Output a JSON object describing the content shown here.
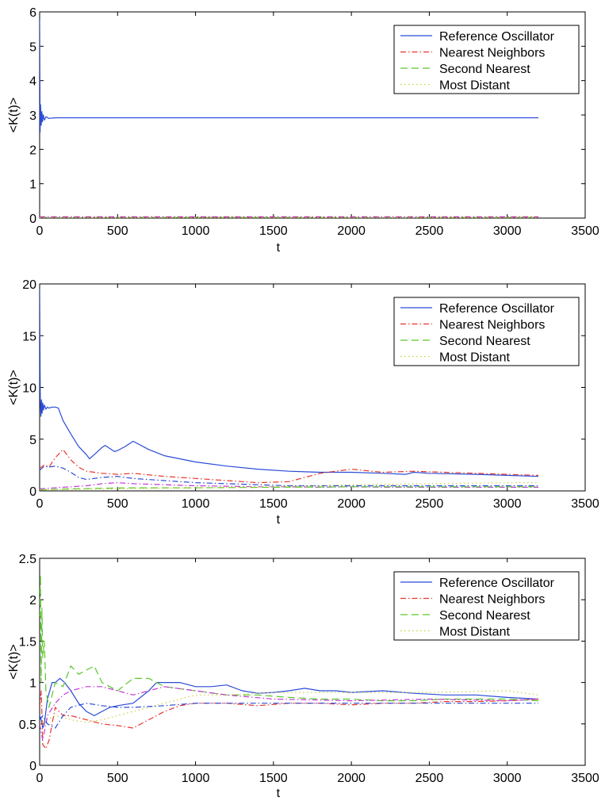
{
  "chart_data": [
    {
      "type": "line",
      "title": "",
      "xlabel": "t",
      "ylabel": "<K(t)>",
      "xlim": [
        0,
        3500
      ],
      "ylim": [
        0,
        6
      ],
      "xticks": [
        0,
        500,
        1000,
        1500,
        2000,
        2500,
        3000,
        3500
      ],
      "yticks": [
        0,
        1,
        2,
        3,
        4,
        5,
        6
      ],
      "legend": [
        "Reference Oscillator",
        "Nearest Neighbors",
        "Second Nearest",
        "Most Distant"
      ],
      "legend_position": "top-right",
      "series": [
        {
          "name": "Reference Oscillator",
          "color": "#2a4bd7",
          "dash": "solid",
          "x": [
            0,
            3,
            6,
            10,
            14,
            18,
            24,
            30,
            40,
            60,
            100,
            200,
            500,
            1000,
            2000,
            3000,
            3200
          ],
          "y": [
            5.8,
            2.5,
            3.3,
            2.7,
            3.1,
            2.8,
            3.0,
            2.85,
            2.95,
            2.9,
            2.92,
            2.92,
            2.92,
            2.92,
            2.92,
            2.92,
            2.92
          ]
        },
        {
          "name": "Nearest Neighbors",
          "color": "#e8352b",
          "dash": "dashdot",
          "x": [
            0,
            500,
            1000,
            1500,
            2000,
            2500,
            3000,
            3200
          ],
          "y": [
            0.04,
            0.04,
            0.04,
            0.04,
            0.04,
            0.04,
            0.04,
            0.04
          ]
        },
        {
          "name": "Second Nearest",
          "color": "#59c72a",
          "dash": "dashed",
          "x": [
            0,
            500,
            1000,
            1500,
            2000,
            2500,
            3000,
            3200
          ],
          "y": [
            0.02,
            0.02,
            0.02,
            0.02,
            0.02,
            0.02,
            0.02,
            0.02
          ]
        },
        {
          "name": "Most Distant",
          "color": "#c9cf3d",
          "dash": "dotted",
          "x": [
            0,
            500,
            1000,
            1500,
            2000,
            2500,
            3000,
            3200
          ],
          "y": [
            0.01,
            0.01,
            0.01,
            0.01,
            0.01,
            0.01,
            0.01,
            0.01
          ]
        },
        {
          "name": "",
          "color": "#c23ad6",
          "dash": "dashdot",
          "x": [
            0,
            500,
            1000,
            1500,
            2000,
            2500,
            3000,
            3200
          ],
          "y": [
            0.03,
            0.03,
            0.03,
            0.03,
            0.03,
            0.03,
            0.03,
            0.03
          ]
        }
      ]
    },
    {
      "type": "line",
      "title": "",
      "xlabel": "t",
      "ylabel": "<K(t)>",
      "xlim": [
        0,
        3500
      ],
      "ylim": [
        0,
        20
      ],
      "xticks": [
        0,
        500,
        1000,
        1500,
        2000,
        2500,
        3000,
        3500
      ],
      "yticks": [
        0,
        5,
        10,
        15,
        20
      ],
      "legend": [
        "Reference Oscillator",
        "Nearest Neighbors",
        "Second Nearest",
        "Most Distant"
      ],
      "legend_position": "top-right",
      "series": [
        {
          "name": "Reference Oscillator",
          "color": "#2a4bd7",
          "dash": "solid",
          "x": [
            0,
            4,
            8,
            12,
            16,
            20,
            25,
            30,
            40,
            50,
            60,
            80,
            100,
            120,
            150,
            200,
            250,
            300,
            320,
            350,
            400,
            420,
            450,
            480,
            500,
            550,
            600,
            700,
            800,
            1000,
            1200,
            1400,
            1600,
            1800,
            2000,
            2200,
            2350,
            2400,
            2500,
            2800,
            3000,
            3200
          ],
          "y": [
            19.5,
            9.0,
            7.2,
            8.8,
            7.5,
            8.5,
            7.8,
            8.3,
            7.9,
            8.1,
            8.0,
            8.1,
            8.1,
            8.0,
            6.8,
            5.5,
            4.3,
            3.5,
            3.1,
            3.5,
            4.2,
            4.4,
            4.1,
            3.8,
            3.9,
            4.3,
            4.8,
            4.0,
            3.4,
            2.8,
            2.4,
            2.1,
            1.9,
            1.8,
            1.8,
            1.7,
            1.6,
            1.8,
            1.7,
            1.6,
            1.5,
            1.4
          ]
        },
        {
          "name": "Nearest Neighbors",
          "color": "#e8352b",
          "dash": "dashdot",
          "x": [
            0,
            30,
            60,
            100,
            150,
            200,
            250,
            300,
            400,
            500,
            600,
            800,
            1000,
            1200,
            1400,
            1600,
            1700,
            1800,
            1900,
            2000,
            2200,
            2400,
            2600,
            2800,
            3000,
            3200
          ],
          "y": [
            2.2,
            2.5,
            2.3,
            3.2,
            4.0,
            3.0,
            2.3,
            1.9,
            1.7,
            1.6,
            1.7,
            1.4,
            1.2,
            1.0,
            0.8,
            0.9,
            1.3,
            1.7,
            1.9,
            2.1,
            1.8,
            1.9,
            1.8,
            1.7,
            1.6,
            1.5
          ]
        },
        {
          "name": "",
          "color": "#2a4bd7",
          "dash": "dashdot",
          "x": [
            0,
            30,
            60,
            100,
            150,
            200,
            250,
            300,
            400,
            500,
            600,
            800,
            1000,
            1200,
            1400,
            1600,
            1800,
            2000,
            2200,
            2400,
            2600,
            2800,
            3000,
            3200
          ],
          "y": [
            2.0,
            2.4,
            2.3,
            2.4,
            2.2,
            1.8,
            1.3,
            1.1,
            1.3,
            1.4,
            1.2,
            1.0,
            0.8,
            0.7,
            0.6,
            0.5,
            0.5,
            0.5,
            0.5,
            0.5,
            0.5,
            0.5,
            0.5,
            0.5
          ]
        },
        {
          "name": "",
          "color": "#c23ad6",
          "dash": "dashdot",
          "x": [
            0,
            100,
            200,
            300,
            400,
            500,
            600,
            800,
            1000,
            1200,
            1400,
            1600,
            1800,
            2000,
            2200,
            2400,
            2600,
            2800,
            3000,
            3200
          ],
          "y": [
            0.2,
            0.3,
            0.4,
            0.5,
            0.7,
            0.8,
            0.7,
            0.6,
            0.5,
            0.45,
            0.4,
            0.4,
            0.35,
            0.4,
            0.35,
            0.35,
            0.35,
            0.35,
            0.35,
            0.35
          ]
        },
        {
          "name": "Second Nearest",
          "color": "#59c72a",
          "dash": "dashed",
          "x": [
            0,
            200,
            400,
            600,
            800,
            1000,
            1500,
            2000,
            2500,
            3000,
            3200
          ],
          "y": [
            0.1,
            0.2,
            0.25,
            0.3,
            0.3,
            0.3,
            0.35,
            0.4,
            0.4,
            0.4,
            0.4
          ]
        },
        {
          "name": "Most Distant",
          "color": "#c9cf3d",
          "dash": "dotted",
          "x": [
            0,
            500,
            1000,
            1500,
            2000,
            2500,
            3000,
            3200
          ],
          "y": [
            0.1,
            0.2,
            0.3,
            0.4,
            0.6,
            0.7,
            0.8,
            0.8
          ]
        }
      ]
    },
    {
      "type": "line",
      "title": "",
      "xlabel": "t",
      "ylabel": "<K(t)>",
      "xlim": [
        0,
        3500
      ],
      "ylim": [
        0,
        2.5
      ],
      "xticks": [
        0,
        500,
        1000,
        1500,
        2000,
        2500,
        3000,
        3500
      ],
      "yticks": [
        0,
        0.5,
        1,
        1.5,
        2,
        2.5
      ],
      "legend": [
        "Reference Oscillator",
        "Nearest Neighbors",
        "Second Nearest",
        "Most Distant"
      ],
      "legend_position": "top-right",
      "series": [
        {
          "name": "Reference Oscillator",
          "color": "#2a4bd7",
          "dash": "solid",
          "x": [
            0,
            10,
            20,
            30,
            50,
            80,
            100,
            130,
            160,
            200,
            250,
            300,
            350,
            400,
            450,
            500,
            600,
            700,
            750,
            800,
            900,
            1000,
            1100,
            1200,
            1300,
            1400,
            1500,
            1600,
            1700,
            1800,
            1900,
            2000,
            2200,
            2400,
            2600,
            2800,
            3000,
            3200
          ],
          "y": [
            0.6,
            0.55,
            0.45,
            0.5,
            0.8,
            1.0,
            1.0,
            1.05,
            1.0,
            0.9,
            0.75,
            0.65,
            0.6,
            0.65,
            0.7,
            0.72,
            0.75,
            0.9,
            1.0,
            1.0,
            1.0,
            0.95,
            0.95,
            0.97,
            0.9,
            0.87,
            0.88,
            0.9,
            0.93,
            0.9,
            0.9,
            0.88,
            0.9,
            0.87,
            0.85,
            0.85,
            0.82,
            0.8
          ]
        },
        {
          "name": "Nearest Neighbors",
          "color": "#e8352b",
          "dash": "dashdot",
          "x": [
            0,
            10,
            20,
            40,
            60,
            80,
            100,
            150,
            200,
            300,
            400,
            500,
            600,
            700,
            800,
            900,
            1000,
            1200,
            1400,
            1600,
            1800,
            2000,
            2200,
            2400,
            2600,
            2800,
            3000,
            3200
          ],
          "y": [
            0.7,
            0.9,
            0.25,
            0.2,
            0.3,
            0.5,
            0.7,
            0.6,
            0.6,
            0.55,
            0.5,
            0.48,
            0.45,
            0.55,
            0.65,
            0.72,
            0.75,
            0.75,
            0.72,
            0.75,
            0.75,
            0.73,
            0.75,
            0.75,
            0.77,
            0.77,
            0.78,
            0.8
          ]
        },
        {
          "name": "Second Nearest",
          "color": "#59c72a",
          "dash": "dashed",
          "x": [
            0,
            5,
            10,
            15,
            20,
            30,
            40,
            60,
            80,
            100,
            150,
            200,
            250,
            300,
            350,
            400,
            500,
            600,
            700,
            800,
            1000,
            1200,
            1400,
            1600,
            1800,
            2000,
            2200,
            2400,
            2600,
            2800,
            3000,
            3200
          ],
          "y": [
            1.8,
            2.3,
            1.0,
            1.9,
            1.3,
            1.5,
            0.9,
            0.7,
            0.85,
            1.0,
            0.95,
            1.2,
            1.1,
            1.15,
            1.2,
            1.0,
            0.9,
            1.05,
            1.05,
            0.95,
            0.9,
            0.85,
            0.85,
            0.82,
            0.8,
            0.8,
            0.78,
            0.78,
            0.8,
            0.8,
            0.8,
            0.78
          ]
        },
        {
          "name": "Most Distant",
          "color": "#c9cf3d",
          "dash": "dotted",
          "x": [
            0,
            50,
            100,
            200,
            300,
            400,
            500,
            600,
            800,
            1000,
            1200,
            1500,
            2000,
            2500,
            3000,
            3200
          ],
          "y": [
            0.5,
            0.55,
            0.6,
            0.55,
            0.52,
            0.55,
            0.6,
            0.65,
            0.75,
            0.85,
            0.85,
            0.88,
            0.88,
            0.88,
            0.9,
            0.85
          ]
        },
        {
          "name": "",
          "color": "#c23ad6",
          "dash": "dashdot",
          "x": [
            0,
            20,
            50,
            100,
            150,
            200,
            300,
            400,
            500,
            600,
            700,
            800,
            1000,
            1200,
            1500,
            2000,
            2500,
            3000,
            3200
          ],
          "y": [
            0.5,
            0.3,
            0.6,
            0.75,
            0.85,
            0.9,
            0.95,
            0.95,
            0.9,
            0.85,
            0.9,
            0.95,
            0.9,
            0.85,
            0.8,
            0.78,
            0.8,
            0.78,
            0.8
          ]
        },
        {
          "name": "",
          "color": "#2a4bd7",
          "dash": "dashdot",
          "x": [
            0,
            20,
            50,
            100,
            150,
            200,
            300,
            400,
            500,
            600,
            800,
            1000,
            1200,
            1500,
            2000,
            2500,
            3000,
            3200
          ],
          "y": [
            0.55,
            0.6,
            0.5,
            0.45,
            0.6,
            0.7,
            0.75,
            0.72,
            0.7,
            0.7,
            0.72,
            0.75,
            0.75,
            0.75,
            0.75,
            0.75,
            0.75,
            0.75
          ]
        }
      ]
    }
  ]
}
